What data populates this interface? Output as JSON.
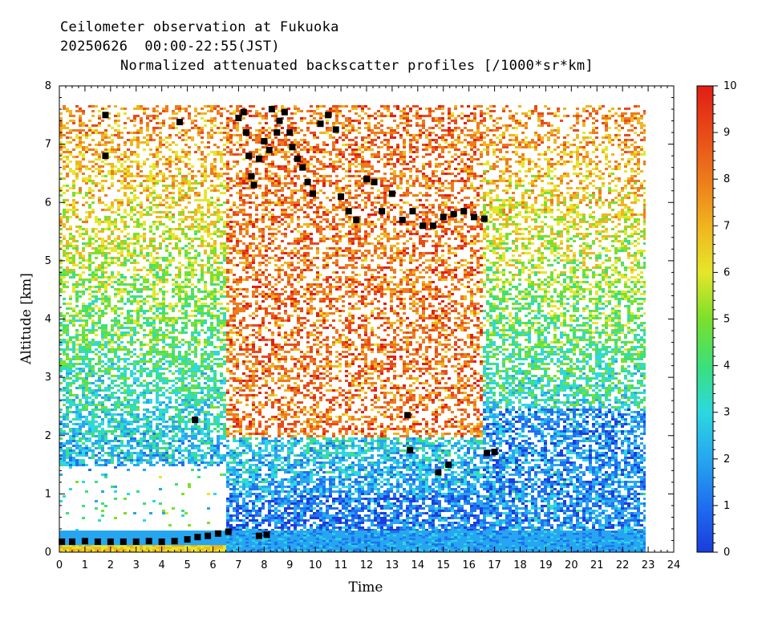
{
  "chart_data": {
    "type": "heatmap",
    "title_lines": [
      "Ceilometer observation at Fukuoka",
      "20250626  00:00-22:55(JST)",
      "Normalized attenuated backscatter profiles [/1000*sr*km]"
    ],
    "xlabel": "Time",
    "ylabel": "Altitude [km]",
    "xlim": [
      0,
      24
    ],
    "ylim": [
      0,
      8
    ],
    "x_ticks": [
      "0",
      "1",
      "2",
      "3",
      "4",
      "5",
      "6",
      "7",
      "8",
      "9",
      "10",
      "11",
      "12",
      "13",
      "14",
      "15",
      "16",
      "17",
      "18",
      "19",
      "20",
      "21",
      "22",
      "23",
      "24"
    ],
    "y_ticks": [
      "0",
      "1",
      "2",
      "3",
      "4",
      "5",
      "6",
      "7",
      "8"
    ],
    "data_time_range": [
      0,
      22.92
    ],
    "data_max_altitude": 7.67,
    "colorbar": {
      "range": [
        0,
        10
      ],
      "ticks": [
        "0",
        "1",
        "2",
        "3",
        "4",
        "5",
        "6",
        "7",
        "8",
        "9",
        "10"
      ],
      "colors": [
        "#1a3cdc",
        "#1e6ff0",
        "#26a6f0",
        "#2cd8e0",
        "#3be07a",
        "#7ae02a",
        "#e6e62a",
        "#f0b41e",
        "#ee7a1c",
        "#e84a18",
        "#e01e14"
      ]
    },
    "cloud_base_points": [
      [
        0.1,
        0.18
      ],
      [
        0.5,
        0.18
      ],
      [
        1.0,
        0.19
      ],
      [
        1.5,
        0.18
      ],
      [
        2.0,
        0.18
      ],
      [
        2.5,
        0.18
      ],
      [
        3.0,
        0.18
      ],
      [
        3.5,
        0.19
      ],
      [
        4.0,
        0.18
      ],
      [
        4.5,
        0.19
      ],
      [
        5.0,
        0.22
      ],
      [
        5.4,
        0.26
      ],
      [
        5.8,
        0.28
      ],
      [
        6.2,
        0.32
      ],
      [
        6.6,
        0.35
      ],
      [
        7.8,
        0.28
      ],
      [
        8.1,
        0.3
      ],
      [
        1.8,
        7.5
      ],
      [
        1.8,
        6.8
      ],
      [
        4.7,
        7.38
      ],
      [
        5.3,
        2.27
      ],
      [
        7.0,
        7.45
      ],
      [
        7.2,
        7.55
      ],
      [
        7.3,
        7.2
      ],
      [
        7.4,
        6.8
      ],
      [
        7.5,
        6.45
      ],
      [
        7.6,
        6.3
      ],
      [
        7.8,
        6.75
      ],
      [
        8.0,
        7.05
      ],
      [
        8.2,
        6.9
      ],
      [
        8.3,
        7.6
      ],
      [
        8.5,
        7.2
      ],
      [
        8.6,
        7.4
      ],
      [
        8.8,
        7.55
      ],
      [
        9.0,
        7.2
      ],
      [
        9.1,
        6.95
      ],
      [
        9.3,
        6.75
      ],
      [
        9.5,
        6.6
      ],
      [
        9.7,
        6.35
      ],
      [
        9.9,
        6.15
      ],
      [
        10.2,
        7.35
      ],
      [
        10.5,
        7.5
      ],
      [
        10.8,
        7.25
      ],
      [
        11.0,
        6.1
      ],
      [
        11.3,
        5.85
      ],
      [
        11.6,
        5.7
      ],
      [
        12.0,
        6.4
      ],
      [
        12.3,
        6.35
      ],
      [
        12.6,
        5.85
      ],
      [
        13.0,
        6.15
      ],
      [
        13.4,
        5.7
      ],
      [
        13.8,
        5.85
      ],
      [
        14.2,
        5.6
      ],
      [
        14.6,
        5.6
      ],
      [
        15.0,
        5.75
      ],
      [
        15.4,
        5.8
      ],
      [
        15.8,
        5.85
      ],
      [
        16.2,
        5.75
      ],
      [
        16.6,
        5.72
      ],
      [
        13.6,
        2.35
      ],
      [
        13.7,
        1.75
      ],
      [
        14.8,
        1.37
      ],
      [
        15.2,
        1.5
      ],
      [
        16.7,
        1.7
      ],
      [
        17.0,
        1.72
      ]
    ]
  }
}
